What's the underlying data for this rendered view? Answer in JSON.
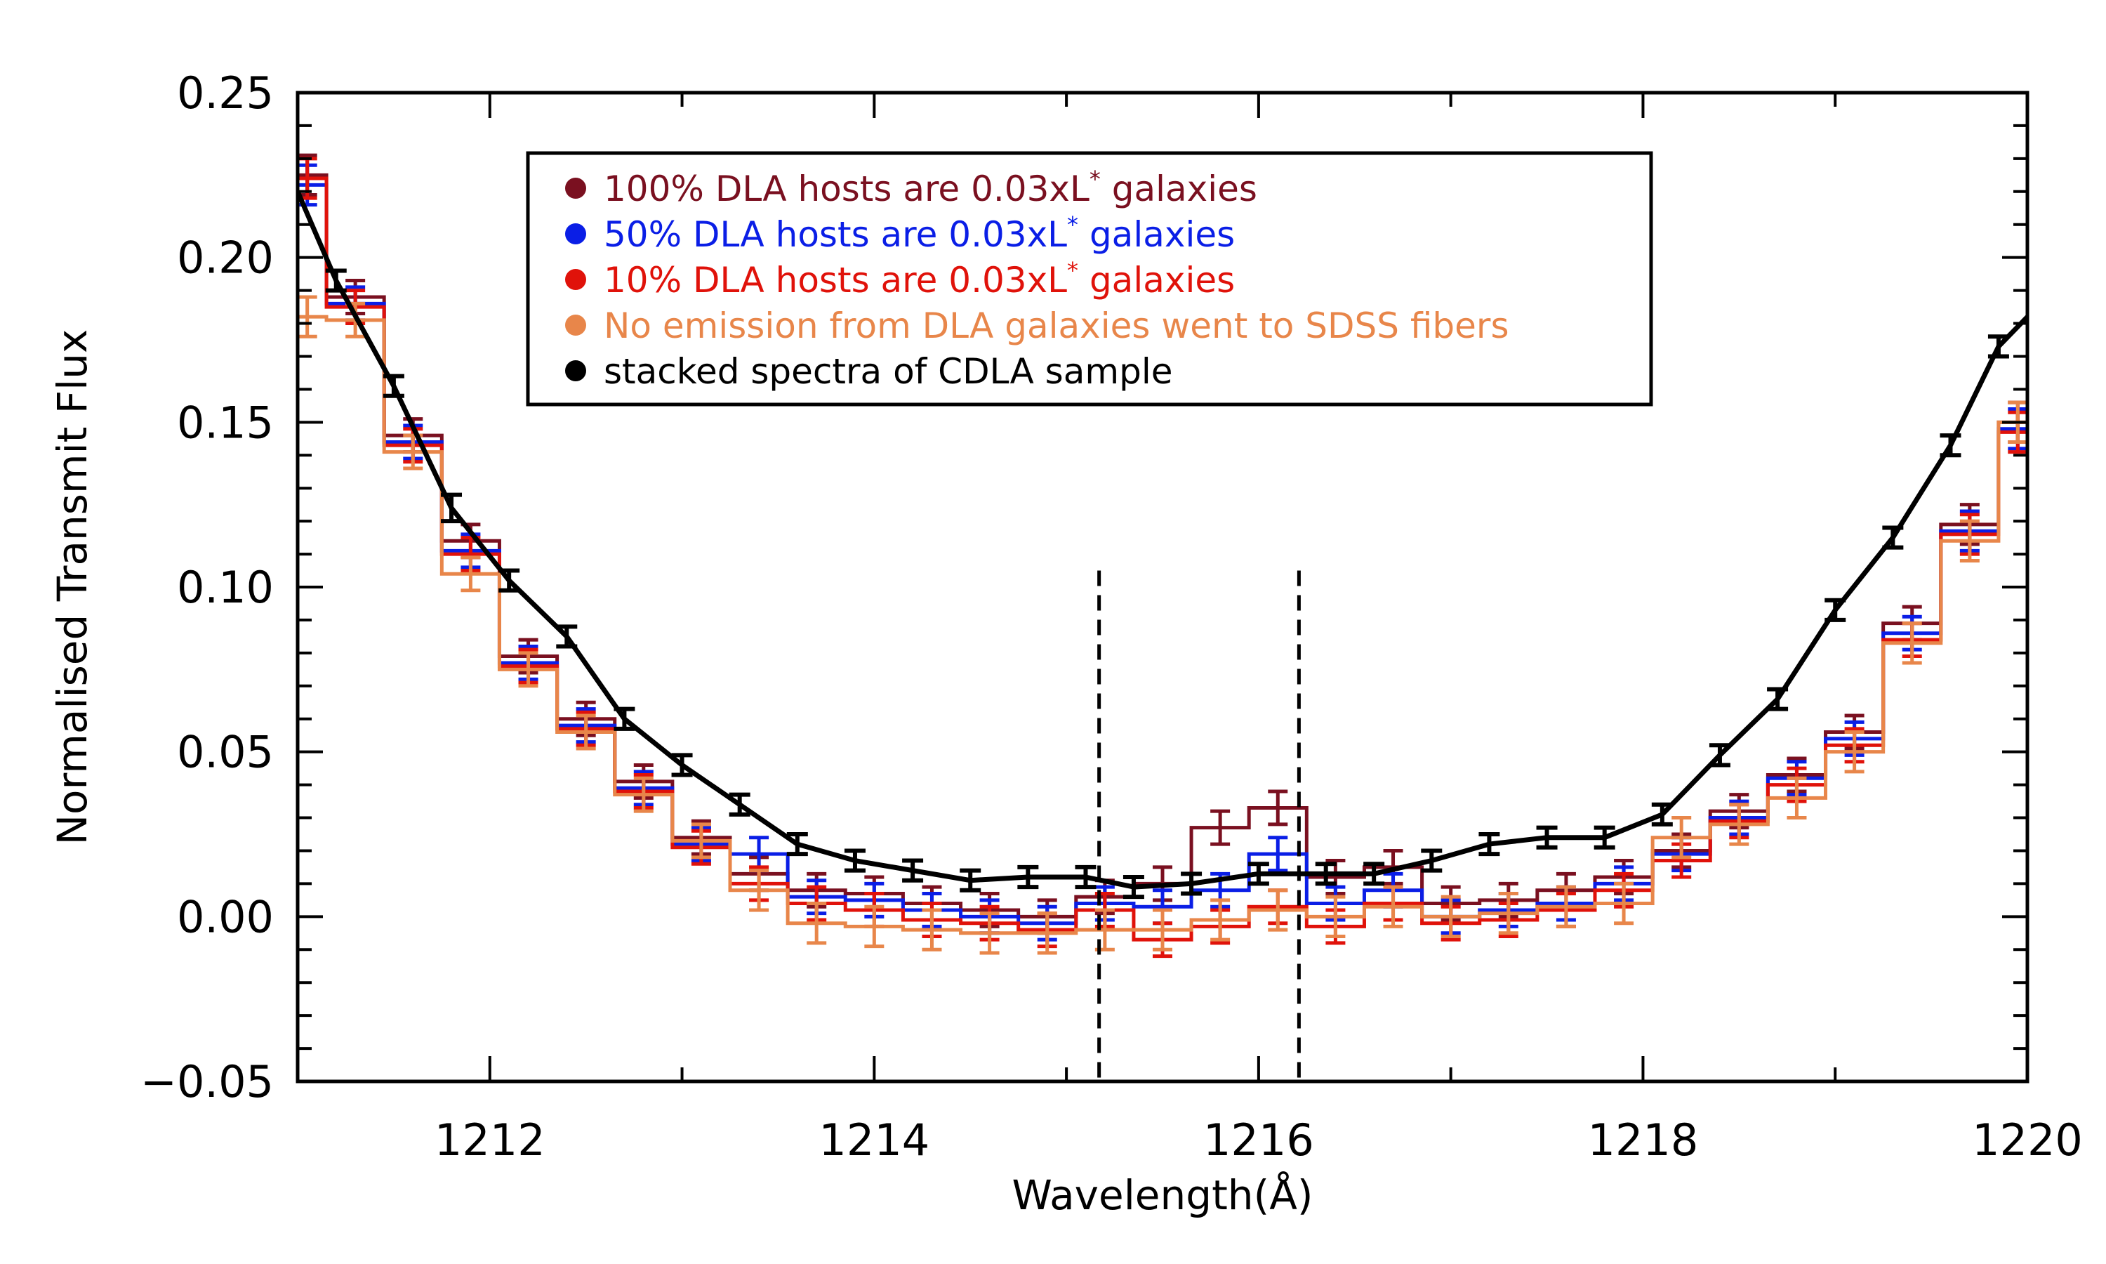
{
  "chart_data": {
    "type": "line",
    "title": "",
    "xlabel": "Wavelength(Å)",
    "ylabel": "Normalised Transmit Flux",
    "xlim": [
      1211.0,
      1220.0
    ],
    "ylim": [
      -0.05,
      0.25
    ],
    "xticks": [
      1212,
      1214,
      1216,
      1218,
      1220
    ],
    "xtick_labels": [
      "1212",
      "1214",
      "1216",
      "1218",
      "1220"
    ],
    "yticks": [
      -0.05,
      0.0,
      0.05,
      0.1,
      0.15,
      0.2,
      0.25
    ],
    "ytick_labels": [
      "−0.05",
      "0.00",
      "0.05",
      "0.10",
      "0.15",
      "0.20",
      "0.25"
    ],
    "vertical_lines": [
      1215.17,
      1216.21
    ],
    "legend_position": "top-center",
    "bin_edges": [
      1211.0,
      1211.15,
      1211.45,
      1211.75,
      1212.05,
      1212.35,
      1212.65,
      1212.95,
      1213.25,
      1213.55,
      1213.85,
      1214.15,
      1214.45,
      1214.75,
      1215.05,
      1215.35,
      1215.65,
      1215.95,
      1216.25,
      1216.55,
      1216.85,
      1217.15,
      1217.45,
      1217.75,
      1218.05,
      1218.35,
      1218.65,
      1218.95,
      1219.25,
      1219.55,
      1219.85,
      1220.0
    ],
    "bin_centers": [
      1211.05,
      1211.3,
      1211.6,
      1211.9,
      1212.2,
      1212.5,
      1212.8,
      1213.1,
      1213.4,
      1213.7,
      1214.0,
      1214.3,
      1214.6,
      1214.9,
      1215.2,
      1215.5,
      1215.8,
      1216.1,
      1216.4,
      1216.7,
      1217.0,
      1217.3,
      1217.6,
      1217.9,
      1218.2,
      1218.5,
      1218.8,
      1219.1,
      1219.4,
      1219.7,
      1219.95
    ],
    "series": [
      {
        "name": "100% DLA hosts are 0.03xL* galaxies",
        "style": "step",
        "color": "#7a1020",
        "values": [
          0.225,
          0.188,
          0.146,
          0.114,
          0.079,
          0.06,
          0.041,
          0.024,
          0.013,
          0.008,
          0.007,
          0.004,
          0.002,
          0.0,
          0.006,
          0.01,
          0.027,
          0.033,
          0.012,
          0.015,
          0.004,
          0.005,
          0.008,
          0.012,
          0.02,
          0.032,
          0.043,
          0.056,
          0.089,
          0.119,
          0.15
        ],
        "errors": [
          0.006,
          0.005,
          0.005,
          0.005,
          0.005,
          0.005,
          0.005,
          0.005,
          0.005,
          0.005,
          0.005,
          0.005,
          0.005,
          0.005,
          0.005,
          0.005,
          0.005,
          0.005,
          0.005,
          0.005,
          0.005,
          0.005,
          0.005,
          0.005,
          0.005,
          0.005,
          0.005,
          0.005,
          0.005,
          0.006,
          0.006
        ]
      },
      {
        "name": "50% DLA hosts are 0.03xL* galaxies",
        "style": "step",
        "color": "#0a1ee6",
        "values": [
          0.222,
          0.186,
          0.144,
          0.111,
          0.077,
          0.058,
          0.039,
          0.022,
          0.019,
          0.006,
          0.005,
          0.002,
          0.0,
          -0.002,
          0.004,
          0.003,
          0.008,
          0.019,
          0.004,
          0.008,
          0.0,
          0.002,
          0.004,
          0.01,
          0.019,
          0.03,
          0.042,
          0.054,
          0.086,
          0.117,
          0.148
        ],
        "errors": [
          0.006,
          0.005,
          0.005,
          0.005,
          0.005,
          0.005,
          0.005,
          0.005,
          0.005,
          0.005,
          0.005,
          0.005,
          0.005,
          0.005,
          0.005,
          0.005,
          0.005,
          0.005,
          0.005,
          0.005,
          0.005,
          0.005,
          0.005,
          0.005,
          0.005,
          0.005,
          0.005,
          0.005,
          0.005,
          0.006,
          0.006
        ]
      },
      {
        "name": "10% DLA hosts are 0.03xL* galaxies",
        "style": "step",
        "color": "#e0120a",
        "values": [
          0.224,
          0.185,
          0.143,
          0.11,
          0.076,
          0.057,
          0.038,
          0.021,
          0.01,
          0.004,
          0.002,
          -0.001,
          -0.002,
          -0.004,
          0.002,
          -0.007,
          -0.003,
          0.003,
          -0.003,
          0.004,
          -0.002,
          -0.001,
          0.002,
          0.008,
          0.017,
          0.029,
          0.04,
          0.052,
          0.084,
          0.116,
          0.147
        ],
        "errors": [
          0.006,
          0.005,
          0.005,
          0.005,
          0.005,
          0.005,
          0.005,
          0.005,
          0.005,
          0.005,
          0.005,
          0.005,
          0.005,
          0.005,
          0.005,
          0.005,
          0.005,
          0.005,
          0.005,
          0.005,
          0.005,
          0.005,
          0.005,
          0.005,
          0.005,
          0.005,
          0.005,
          0.005,
          0.005,
          0.006,
          0.006
        ]
      },
      {
        "name": "No emission from DLA galaxies went to SDSS fibers",
        "style": "step",
        "color": "#e8864a",
        "values": [
          0.182,
          0.181,
          0.141,
          0.104,
          0.075,
          0.056,
          0.037,
          0.023,
          0.008,
          -0.002,
          -0.003,
          -0.004,
          -0.005,
          -0.005,
          -0.004,
          -0.004,
          -0.001,
          0.002,
          0.0,
          0.003,
          0.0,
          0.001,
          0.003,
          0.004,
          0.024,
          0.028,
          0.036,
          0.05,
          0.083,
          0.114,
          0.15
        ],
        "errors": [
          0.006,
          0.005,
          0.005,
          0.005,
          0.005,
          0.005,
          0.005,
          0.005,
          0.006,
          0.006,
          0.006,
          0.006,
          0.006,
          0.006,
          0.006,
          0.006,
          0.006,
          0.006,
          0.006,
          0.006,
          0.006,
          0.006,
          0.006,
          0.006,
          0.006,
          0.006,
          0.006,
          0.006,
          0.006,
          0.006,
          0.006
        ]
      },
      {
        "name": "stacked spectra of CDLA sample",
        "style": "line",
        "color": "#000000",
        "x": [
          1211.0,
          1211.2,
          1211.5,
          1211.8,
          1212.1,
          1212.4,
          1212.7,
          1213.0,
          1213.3,
          1213.6,
          1213.9,
          1214.2,
          1214.5,
          1214.8,
          1215.1,
          1215.35,
          1215.65,
          1216.0,
          1216.35,
          1216.6,
          1216.9,
          1217.2,
          1217.5,
          1217.8,
          1218.1,
          1218.4,
          1218.7,
          1219.0,
          1219.3,
          1219.6,
          1219.85,
          1220.0
        ],
        "values": [
          0.22,
          0.193,
          0.161,
          0.124,
          0.102,
          0.085,
          0.06,
          0.046,
          0.034,
          0.022,
          0.017,
          0.014,
          0.011,
          0.012,
          0.012,
          0.009,
          0.01,
          0.013,
          0.013,
          0.013,
          0.017,
          0.022,
          0.024,
          0.024,
          0.031,
          0.049,
          0.066,
          0.093,
          0.115,
          0.143,
          0.173,
          0.182
        ],
        "errors": [
          0.0,
          0.003,
          0.003,
          0.004,
          0.003,
          0.003,
          0.003,
          0.003,
          0.003,
          0.003,
          0.003,
          0.003,
          0.003,
          0.003,
          0.003,
          0.003,
          0.003,
          0.003,
          0.003,
          0.003,
          0.003,
          0.003,
          0.003,
          0.003,
          0.003,
          0.003,
          0.003,
          0.003,
          0.003,
          0.003,
          0.003,
          0.0
        ]
      }
    ],
    "legend": [
      {
        "prefix": "100% DLA hosts are 0.03xL",
        "sup": "*",
        "suffix": " galaxies",
        "color": "#7a1020"
      },
      {
        "prefix": "50% DLA hosts are 0.03xL",
        "sup": "*",
        "suffix": " galaxies",
        "color": "#0a1ee6"
      },
      {
        "prefix": "10% DLA hosts are 0.03xL",
        "sup": "*",
        "suffix": " galaxies",
        "color": "#e0120a"
      },
      {
        "prefix": "No emission from DLA galaxies went to SDSS fibers",
        "sup": "",
        "suffix": "",
        "color": "#e8864a"
      },
      {
        "prefix": "stacked spectra of CDLA sample",
        "sup": "",
        "suffix": "",
        "color": "#000000"
      }
    ]
  }
}
